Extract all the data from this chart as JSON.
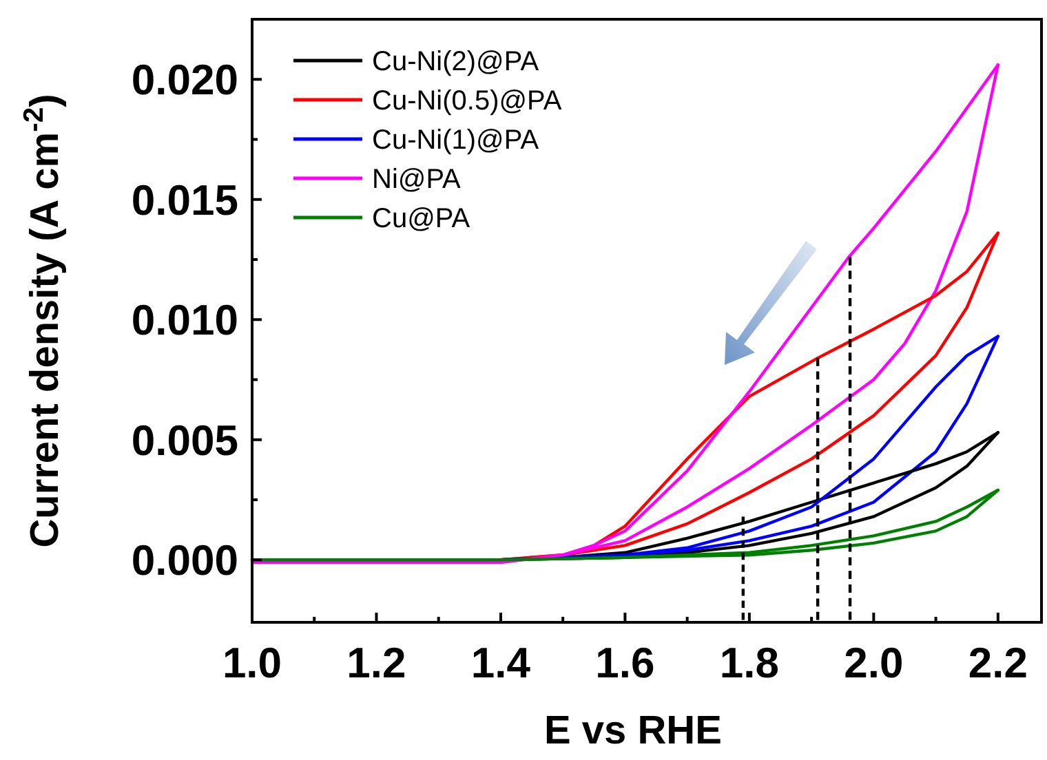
{
  "chart_data": {
    "type": "line",
    "xlabel": "E vs RHE",
    "ylabel": "Current density (A cm$^{-2}$)",
    "xlim": [
      1.0,
      2.27
    ],
    "ylim": [
      -0.0026,
      0.0225
    ],
    "xticks": [
      {
        "value": 1.0,
        "label": "1.0"
      },
      {
        "value": 1.1,
        "label": null
      },
      {
        "value": 1.2,
        "label": "1.2"
      },
      {
        "value": 1.3,
        "label": null
      },
      {
        "value": 1.4,
        "label": "1.4"
      },
      {
        "value": 1.5,
        "label": null
      },
      {
        "value": 1.6,
        "label": "1.6"
      },
      {
        "value": 1.7,
        "label": null
      },
      {
        "value": 1.8,
        "label": "1.8"
      },
      {
        "value": 1.9,
        "label": null
      },
      {
        "value": 2.0,
        "label": "2.0"
      },
      {
        "value": 2.1,
        "label": null
      },
      {
        "value": 2.2,
        "label": "2.2"
      }
    ],
    "yticks": [
      {
        "value": 0,
        "label": "0.000"
      },
      {
        "value": 0.0025,
        "label": null
      },
      {
        "value": 0.005,
        "label": "0.005"
      },
      {
        "value": 0.0075,
        "label": null
      },
      {
        "value": 0.01,
        "label": "0.010"
      },
      {
        "value": 0.0125,
        "label": null
      },
      {
        "value": 0.015,
        "label": "0.015"
      },
      {
        "value": 0.0175,
        "label": null
      },
      {
        "value": 0.02,
        "label": "0.020"
      }
    ],
    "grid": false,
    "legend": "top left",
    "marker": "none",
    "line_style": "solid",
    "series": [
      {
        "name": "Cu-Ni(2)@PA",
        "color": "#000000",
        "x": [
          1.0,
          1.4,
          1.6,
          1.7,
          1.8,
          1.9,
          2.0,
          2.1,
          2.15,
          2.2
        ],
        "values": [
          0,
          0,
          0.0001,
          0.0003,
          0.0006,
          0.0011,
          0.0018,
          0.003,
          0.0039,
          0.0053
        ]
      },
      {
        "name": "Cu-Ni(0.5)@PA",
        "color": "#ff0000",
        "x": [
          1.0,
          1.4,
          1.5,
          1.6,
          1.7,
          1.8,
          1.9,
          2.0,
          2.1,
          2.15,
          2.2
        ],
        "values": [
          0,
          0,
          0.0002,
          0.0006,
          0.0015,
          0.0028,
          0.0042,
          0.006,
          0.0085,
          0.0105,
          0.0136
        ]
      },
      {
        "name": "Cu-Ni(1)@PA",
        "color": "#0000ff",
        "x": [
          1.0,
          1.4,
          1.6,
          1.7,
          1.8,
          1.9,
          2.0,
          2.1,
          2.15,
          2.2
        ],
        "values": [
          0,
          0,
          0.0002,
          0.0004,
          0.0008,
          0.0014,
          0.0024,
          0.0045,
          0.0065,
          0.0093
        ]
      },
      {
        "name": "Ni@PA",
        "color": "#ff00ff",
        "x": [
          1.0,
          1.4,
          1.5,
          1.6,
          1.7,
          1.8,
          1.9,
          2.0,
          2.05,
          2.1,
          2.15,
          2.2
        ],
        "values": [
          -0.0001,
          -0.0001,
          0.0002,
          0.0008,
          0.0022,
          0.0038,
          0.0056,
          0.0075,
          0.009,
          0.0112,
          0.0145,
          0.0206
        ]
      },
      {
        "name": "Cu@PA",
        "color": "#008000",
        "x": [
          1.0,
          1.4,
          1.6,
          1.8,
          1.9,
          2.0,
          2.1,
          2.15,
          2.2
        ],
        "values": [
          0,
          0,
          0.0001,
          0.0002,
          0.0004,
          0.0007,
          0.0012,
          0.0018,
          0.0029
        ]
      },
      {
        "color": "#000000",
        "x": [
          1.4,
          1.5,
          1.6,
          1.7,
          1.8,
          1.9,
          2.0,
          2.1,
          2.15,
          2.2
        ],
        "values": [
          0,
          0.0001,
          0.0003,
          0.0009,
          0.0016,
          0.0024,
          0.0032,
          0.004,
          0.0045,
          0.0053
        ]
      },
      {
        "color": "#ff0000",
        "x": [
          1.4,
          1.5,
          1.55,
          1.6,
          1.7,
          1.8,
          1.91,
          2.0,
          2.1,
          2.15,
          2.2
        ],
        "values": [
          0,
          0.0002,
          0.0006,
          0.0014,
          0.0042,
          0.0068,
          0.0084,
          0.0096,
          0.011,
          0.012,
          0.0136
        ]
      },
      {
        "color": "#0000ff",
        "x": [
          1.4,
          1.5,
          1.6,
          1.7,
          1.8,
          1.9,
          2.0,
          2.1,
          2.15,
          2.2
        ],
        "values": [
          0,
          0.0001,
          0.0002,
          0.0005,
          0.0012,
          0.0022,
          0.0042,
          0.0072,
          0.0085,
          0.0093
        ]
      },
      {
        "color": "#ff00ff",
        "x": [
          1.4,
          1.5,
          1.55,
          1.6,
          1.7,
          1.8,
          1.9,
          1.96,
          2.0,
          2.1,
          2.2
        ],
        "values": [
          -0.0001,
          0.0002,
          0.0006,
          0.0012,
          0.0037,
          0.007,
          0.0105,
          0.0126,
          0.0138,
          0.017,
          0.0206
        ]
      },
      {
        "color": "#008000",
        "x": [
          1.4,
          1.6,
          1.8,
          1.9,
          2.0,
          2.1,
          2.15,
          2.2
        ],
        "values": [
          0,
          0.0001,
          0.0003,
          0.0006,
          0.001,
          0.0016,
          0.0022,
          0.0029
        ]
      },
      {
        "color": "#000000",
        "line_style": "dashed",
        "x": [
          1.79,
          1.79
        ],
        "values": [
          -0.0025,
          0.0018
        ]
      },
      {
        "color": "#000000",
        "line_style": "dashed",
        "x": [
          1.91,
          1.91
        ],
        "values": [
          -0.0025,
          0.0084
        ]
      },
      {
        "color": "#000000",
        "line_style": "dashed",
        "x": [
          1.962,
          1.962
        ],
        "values": [
          -0.0025,
          0.0126
        ]
      }
    ]
  }
}
